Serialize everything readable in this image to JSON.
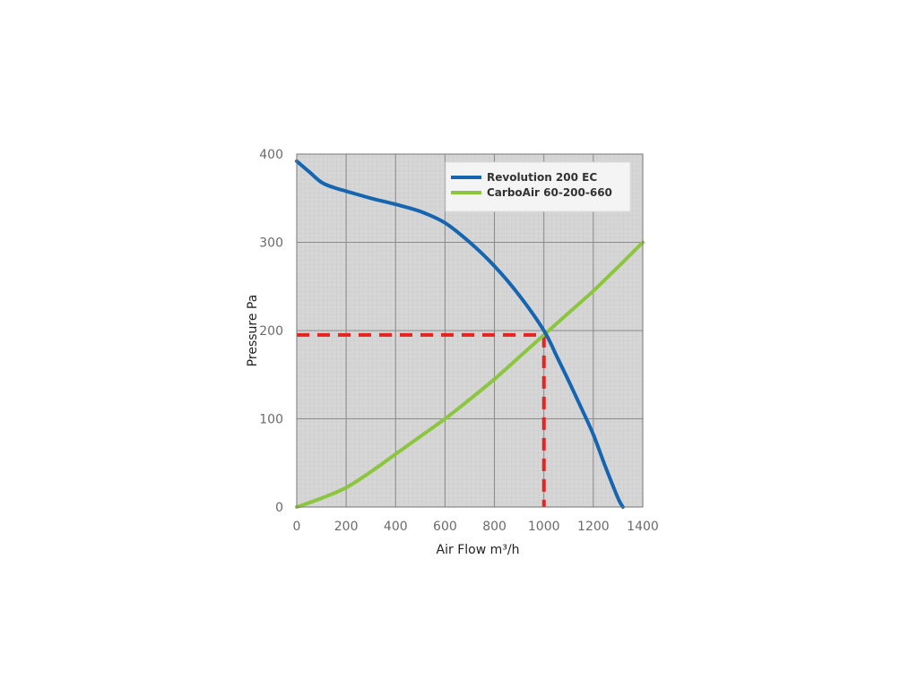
{
  "chart_data": {
    "type": "line",
    "title": "",
    "xlabel": "Air Flow m³/h",
    "ylabel": "Pressure Pa",
    "xlim": [
      0,
      1400
    ],
    "ylim": [
      0,
      400
    ],
    "x_ticks": [
      0,
      200,
      400,
      600,
      800,
      1000,
      1200,
      1400
    ],
    "y_ticks": [
      0,
      100,
      200,
      300,
      400
    ],
    "grid": true,
    "legend_position": "top-right",
    "series": [
      {
        "name": "Revolution 200 EC",
        "color": "#1565b0",
        "x": [
          0,
          50,
          100,
          150,
          200,
          300,
          400,
          500,
          600,
          700,
          800,
          900,
          1000,
          1050,
          1100,
          1150,
          1200,
          1250,
          1300,
          1320
        ],
        "y": [
          392,
          380,
          368,
          362,
          358,
          350,
          343,
          335,
          322,
          300,
          273,
          240,
          200,
          172,
          143,
          113,
          82,
          45,
          10,
          0
        ]
      },
      {
        "name": "CarboAir 60-200-660",
        "color": "#8cc63f",
        "x": [
          0,
          100,
          200,
          300,
          400,
          500,
          600,
          700,
          800,
          900,
          1000,
          1100,
          1200,
          1300,
          1400
        ],
        "y": [
          0,
          10,
          22,
          40,
          60,
          80,
          100,
          122,
          145,
          170,
          195,
          220,
          245,
          272,
          300
        ]
      }
    ],
    "annotations": [
      {
        "type": "operating-point",
        "x": 1000,
        "y": 195,
        "color": "#e52420"
      }
    ]
  }
}
